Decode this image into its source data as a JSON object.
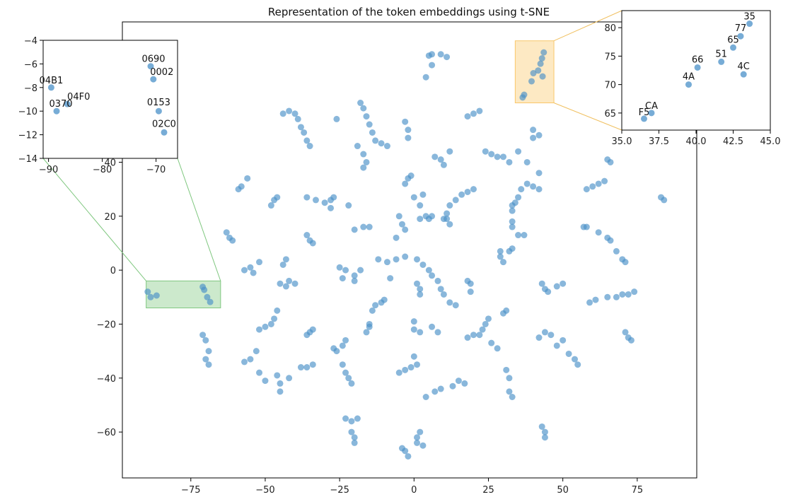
{
  "chart_data": {
    "type": "scatter",
    "title": "Representation of the token embeddings using t-SNE",
    "xlabel": "",
    "ylabel": "",
    "point_color": "#4a90c8",
    "main": {
      "xlim": [
        -98,
        95
      ],
      "ylim": [
        -77,
        92
      ],
      "xticks": [
        -75,
        -50,
        -25,
        0,
        25,
        50,
        75
      ],
      "yticks": [
        -60,
        -40,
        -20,
        0,
        20,
        40
      ],
      "xtick_labels": [
        "−75",
        "−50",
        "−25",
        "0",
        "25",
        "50",
        "75"
      ],
      "ytick_labels": [
        "−60",
        "−40",
        "−20",
        "0",
        "20",
        "40"
      ]
    },
    "highlight_regions": [
      {
        "name": "green-region",
        "x": [
          -90,
          -65
        ],
        "y": [
          -14,
          -4
        ],
        "color": "#7fc77f"
      },
      {
        "name": "orange-region",
        "x": [
          34,
          47
        ],
        "y": [
          62,
          85
        ],
        "color": "#f9c76a"
      }
    ],
    "inset_left": {
      "xlim": [
        -91,
        -66
      ],
      "ylim": [
        -14,
        -4
      ],
      "xticks": [
        -90,
        -80,
        -70
      ],
      "yticks": [
        -14,
        -12,
        -10,
        -8,
        -6,
        -4
      ],
      "xtick_labels": [
        "−90",
        "−80",
        "−70"
      ],
      "ytick_labels": [
        "−14",
        "−12",
        "−10",
        "−8",
        "−6",
        "−4"
      ],
      "points": [
        {
          "x": -89.5,
          "y": -8.0,
          "label": "04B1"
        },
        {
          "x": -86.5,
          "y": -9.4,
          "label": "04F0"
        },
        {
          "x": -88.5,
          "y": -10.0,
          "label": "0370"
        },
        {
          "x": -71.0,
          "y": -6.2,
          "label": "0690"
        },
        {
          "x": -70.5,
          "y": -7.3,
          "label": "0002"
        },
        {
          "x": -69.5,
          "y": -10.0,
          "label": "0153"
        },
        {
          "x": -68.5,
          "y": -11.8,
          "label": "02C0"
        }
      ]
    },
    "inset_right": {
      "xlim": [
        35,
        45
      ],
      "ylim": [
        62,
        83
      ],
      "xticks": [
        35,
        37.5,
        40,
        42.5,
        45
      ],
      "yticks": [
        65,
        70,
        75,
        80
      ],
      "xtick_labels": [
        "35.0",
        "37.5",
        "40.0",
        "42.5",
        "45.0"
      ],
      "ytick_labels": [
        "65",
        "70",
        "75",
        "80"
      ],
      "points": [
        {
          "x": 36.5,
          "y": 64.0,
          "label": "F5"
        },
        {
          "x": 37.0,
          "y": 65.0,
          "label": "CA"
        },
        {
          "x": 39.5,
          "y": 70.0,
          "label": "4A"
        },
        {
          "x": 40.1,
          "y": 73.0,
          "label": "66"
        },
        {
          "x": 41.7,
          "y": 74.0,
          "label": "51"
        },
        {
          "x": 42.5,
          "y": 76.5,
          "label": "65"
        },
        {
          "x": 43.0,
          "y": 78.5,
          "label": "77"
        },
        {
          "x": 43.6,
          "y": 80.7,
          "label": "35"
        },
        {
          "x": 43.2,
          "y": 71.8,
          "label": "4C"
        }
      ]
    },
    "points": [
      [
        -89.5,
        -8
      ],
      [
        -86.5,
        -9.4
      ],
      [
        -88.5,
        -10
      ],
      [
        -71,
        -6.2
      ],
      [
        -70.5,
        -7.3
      ],
      [
        -69.5,
        -10
      ],
      [
        -68.5,
        -11.8
      ],
      [
        36.5,
        64
      ],
      [
        37,
        65
      ],
      [
        39.5,
        70
      ],
      [
        40.1,
        73
      ],
      [
        41.7,
        74
      ],
      [
        42.5,
        76.5
      ],
      [
        43,
        78.5
      ],
      [
        43.6,
        80.7
      ],
      [
        43.2,
        71.8
      ],
      [
        6,
        80
      ],
      [
        4,
        71.5
      ],
      [
        5,
        79.5
      ],
      [
        6,
        76
      ],
      [
        9,
        80
      ],
      [
        11,
        79
      ],
      [
        -18,
        62
      ],
      [
        -17,
        60
      ],
      [
        -16,
        57
      ],
      [
        -15,
        54
      ],
      [
        -14,
        51
      ],
      [
        -13,
        48
      ],
      [
        -11,
        47
      ],
      [
        -9,
        46
      ],
      [
        -19,
        46
      ],
      [
        -17,
        43
      ],
      [
        -3,
        55
      ],
      [
        -2,
        52
      ],
      [
        -2,
        49
      ],
      [
        -42,
        59
      ],
      [
        -40,
        58
      ],
      [
        -39,
        56
      ],
      [
        -38,
        53
      ],
      [
        -37,
        51
      ],
      [
        -36,
        48
      ],
      [
        -35,
        46
      ],
      [
        -44,
        58
      ],
      [
        18,
        57
      ],
      [
        20,
        58
      ],
      [
        22,
        59
      ],
      [
        7,
        42
      ],
      [
        9,
        41
      ],
      [
        10,
        39
      ],
      [
        12,
        44
      ],
      [
        24,
        44
      ],
      [
        26,
        43
      ],
      [
        28,
        42
      ],
      [
        30,
        42
      ],
      [
        32,
        40
      ],
      [
        35,
        44
      ],
      [
        38,
        40
      ],
      [
        40,
        49
      ],
      [
        42,
        50
      ],
      [
        40,
        52
      ],
      [
        -26,
        56
      ],
      [
        -17,
        38
      ],
      [
        -16,
        40
      ],
      [
        -59,
        30
      ],
      [
        -58,
        31
      ],
      [
        -56,
        34
      ],
      [
        -48,
        24
      ],
      [
        -47,
        26
      ],
      [
        -46,
        27
      ],
      [
        -36,
        27
      ],
      [
        -33,
        26
      ],
      [
        -30,
        25
      ],
      [
        -28,
        26
      ],
      [
        -27,
        27
      ],
      [
        -28,
        23
      ],
      [
        -22,
        24
      ],
      [
        -2,
        34
      ],
      [
        -1,
        35
      ],
      [
        -3,
        32
      ],
      [
        0,
        27
      ],
      [
        2,
        24
      ],
      [
        3,
        28
      ],
      [
        4,
        20
      ],
      [
        2,
        19
      ],
      [
        5,
        19
      ],
      [
        6,
        20
      ],
      [
        10,
        19
      ],
      [
        11,
        21
      ],
      [
        12,
        24
      ],
      [
        14,
        26
      ],
      [
        16,
        28
      ],
      [
        18,
        29
      ],
      [
        20,
        30
      ],
      [
        33,
        24
      ],
      [
        33,
        22
      ],
      [
        34,
        25
      ],
      [
        35,
        27
      ],
      [
        36,
        30
      ],
      [
        38,
        32
      ],
      [
        40,
        31
      ],
      [
        42,
        30
      ],
      [
        42,
        36
      ],
      [
        33,
        18
      ],
      [
        33,
        16
      ],
      [
        35,
        13
      ],
      [
        37,
        13
      ],
      [
        12,
        17
      ],
      [
        11,
        19
      ],
      [
        58,
        30
      ],
      [
        60,
        31
      ],
      [
        62,
        32
      ],
      [
        64,
        33
      ],
      [
        66,
        40
      ],
      [
        65,
        41
      ],
      [
        83,
        27
      ],
      [
        84,
        26
      ],
      [
        57,
        16
      ],
      [
        58,
        16
      ],
      [
        62,
        14
      ],
      [
        65,
        12
      ],
      [
        66,
        11
      ],
      [
        68,
        7
      ],
      [
        70,
        4
      ],
      [
        71,
        3
      ],
      [
        -20,
        15
      ],
      [
        -17,
        16
      ],
      [
        -15,
        16
      ],
      [
        -5,
        20
      ],
      [
        -4,
        17
      ],
      [
        -3,
        15
      ],
      [
        -6,
        12
      ],
      [
        -63,
        14
      ],
      [
        -62,
        12
      ],
      [
        -61,
        11
      ],
      [
        -57,
        0
      ],
      [
        -55,
        1
      ],
      [
        -54,
        -1
      ],
      [
        -52,
        3
      ],
      [
        -36,
        13
      ],
      [
        -35,
        11
      ],
      [
        -34,
        10
      ],
      [
        -44,
        2
      ],
      [
        -43,
        4
      ],
      [
        -42,
        -4
      ],
      [
        -45,
        -5
      ],
      [
        -43,
        -6
      ],
      [
        -40,
        -5
      ],
      [
        -25,
        1
      ],
      [
        -23,
        0
      ],
      [
        -20,
        -2
      ],
      [
        -18,
        0
      ],
      [
        -24,
        -3
      ],
      [
        -20,
        -4
      ],
      [
        -12,
        4
      ],
      [
        -9,
        3
      ],
      [
        -6,
        4
      ],
      [
        -3,
        5
      ],
      [
        -8,
        -3
      ],
      [
        1,
        4
      ],
      [
        3,
        2
      ],
      [
        5,
        0
      ],
      [
        6,
        -2
      ],
      [
        8,
        -4
      ],
      [
        1,
        -5
      ],
      [
        2,
        -7
      ],
      [
        2,
        -9
      ],
      [
        9,
        -7
      ],
      [
        10,
        -9
      ],
      [
        12,
        -12
      ],
      [
        14,
        -13
      ],
      [
        18,
        -4
      ],
      [
        19,
        -5
      ],
      [
        19,
        -8
      ],
      [
        29,
        7
      ],
      [
        29,
        5
      ],
      [
        30,
        3
      ],
      [
        32,
        7
      ],
      [
        33,
        8
      ],
      [
        43,
        -5
      ],
      [
        44,
        -7
      ],
      [
        45,
        -8
      ],
      [
        48,
        -6
      ],
      [
        50,
        -5
      ],
      [
        59,
        -12
      ],
      [
        61,
        -11
      ],
      [
        65,
        -10
      ],
      [
        68,
        -10
      ],
      [
        70,
        -9
      ],
      [
        72,
        -9
      ],
      [
        74,
        -8
      ],
      [
        -57,
        -34
      ],
      [
        -55,
        -33
      ],
      [
        -53,
        -30
      ],
      [
        -47,
        -18
      ],
      [
        -46,
        -15
      ],
      [
        -48,
        -20
      ],
      [
        -50,
        -21
      ],
      [
        -52,
        -22
      ],
      [
        -36,
        -24
      ],
      [
        -35,
        -23
      ],
      [
        -34,
        -22
      ],
      [
        -13,
        -13
      ],
      [
        -11,
        -12
      ],
      [
        -10,
        -11
      ],
      [
        -14,
        -15
      ],
      [
        -15,
        -20
      ],
      [
        -16,
        -23
      ],
      [
        -15,
        -21
      ],
      [
        0,
        -19
      ],
      [
        0,
        -22
      ],
      [
        2,
        -23
      ],
      [
        6,
        -21
      ],
      [
        8,
        -23
      ],
      [
        -23,
        -26
      ],
      [
        -24,
        -28
      ],
      [
        -26,
        -30
      ],
      [
        -27,
        -29
      ],
      [
        18,
        -25
      ],
      [
        20,
        -24
      ],
      [
        22,
        -24
      ],
      [
        23,
        -22
      ],
      [
        24,
        -20
      ],
      [
        25,
        -18
      ],
      [
        26,
        -27
      ],
      [
        28,
        -29
      ],
      [
        30,
        -16
      ],
      [
        31,
        -15
      ],
      [
        -71,
        -24
      ],
      [
        -70,
        -26
      ],
      [
        -69,
        -30
      ],
      [
        -70,
        -33
      ],
      [
        -69,
        -35
      ],
      [
        -52,
        -38
      ],
      [
        -50,
        -41
      ],
      [
        -46,
        -39
      ],
      [
        -45,
        -42
      ],
      [
        -45,
        -45
      ],
      [
        -42,
        -40
      ],
      [
        -38,
        -36
      ],
      [
        -36,
        -36
      ],
      [
        -34,
        -35
      ],
      [
        -24,
        -35
      ],
      [
        -23,
        -38
      ],
      [
        -22,
        -40
      ],
      [
        -21,
        -42
      ],
      [
        -5,
        -38
      ],
      [
        -3,
        -37
      ],
      [
        -1,
        -36
      ],
      [
        1,
        -35
      ],
      [
        0,
        -32
      ],
      [
        4,
        -47
      ],
      [
        7,
        -45
      ],
      [
        9,
        -44
      ],
      [
        13,
        -43
      ],
      [
        15,
        -41
      ],
      [
        17,
        -42
      ],
      [
        31,
        -37
      ],
      [
        32,
        -40
      ],
      [
        32,
        -45
      ],
      [
        33,
        -47
      ],
      [
        42,
        -25
      ],
      [
        44,
        -23
      ],
      [
        46,
        -24
      ],
      [
        48,
        -28
      ],
      [
        50,
        -26
      ],
      [
        52,
        -31
      ],
      [
        54,
        -33
      ],
      [
        55,
        -35
      ],
      [
        71,
        -23
      ],
      [
        72,
        -25
      ],
      [
        73,
        -26
      ],
      [
        -23,
        -55
      ],
      [
        -21,
        -56
      ],
      [
        -19,
        -55
      ],
      [
        -21,
        -60
      ],
      [
        -20,
        -62
      ],
      [
        -20,
        -64
      ],
      [
        -4,
        -66
      ],
      [
        -3,
        -67
      ],
      [
        -2,
        -69
      ],
      [
        2,
        -60
      ],
      [
        1,
        -62
      ],
      [
        1,
        -64
      ],
      [
        3,
        -65
      ],
      [
        43,
        -58
      ],
      [
        44,
        -60
      ],
      [
        44,
        -62
      ]
    ]
  }
}
